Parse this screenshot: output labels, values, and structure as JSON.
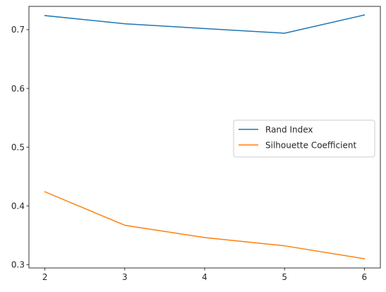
{
  "chart_data": {
    "type": "line",
    "x": [
      2,
      3,
      4,
      5,
      6
    ],
    "series": [
      {
        "name": "Rand Index",
        "values": [
          0.724,
          0.71,
          0.702,
          0.694,
          0.725
        ],
        "color": "#1f77b4"
      },
      {
        "name": "Silhouette Coefficient",
        "values": [
          0.424,
          0.367,
          0.346,
          0.332,
          0.31
        ],
        "color": "#ff7f0e"
      }
    ],
    "xticks": [
      "2",
      "3",
      "4",
      "5",
      "6"
    ],
    "yticks": [
      "0.3",
      "0.4",
      "0.5",
      "0.6",
      "0.7"
    ],
    "xlim": [
      1.8,
      6.2
    ],
    "ylim": [
      0.2943,
      0.7397
    ],
    "grid": false,
    "legend": "center-right"
  }
}
